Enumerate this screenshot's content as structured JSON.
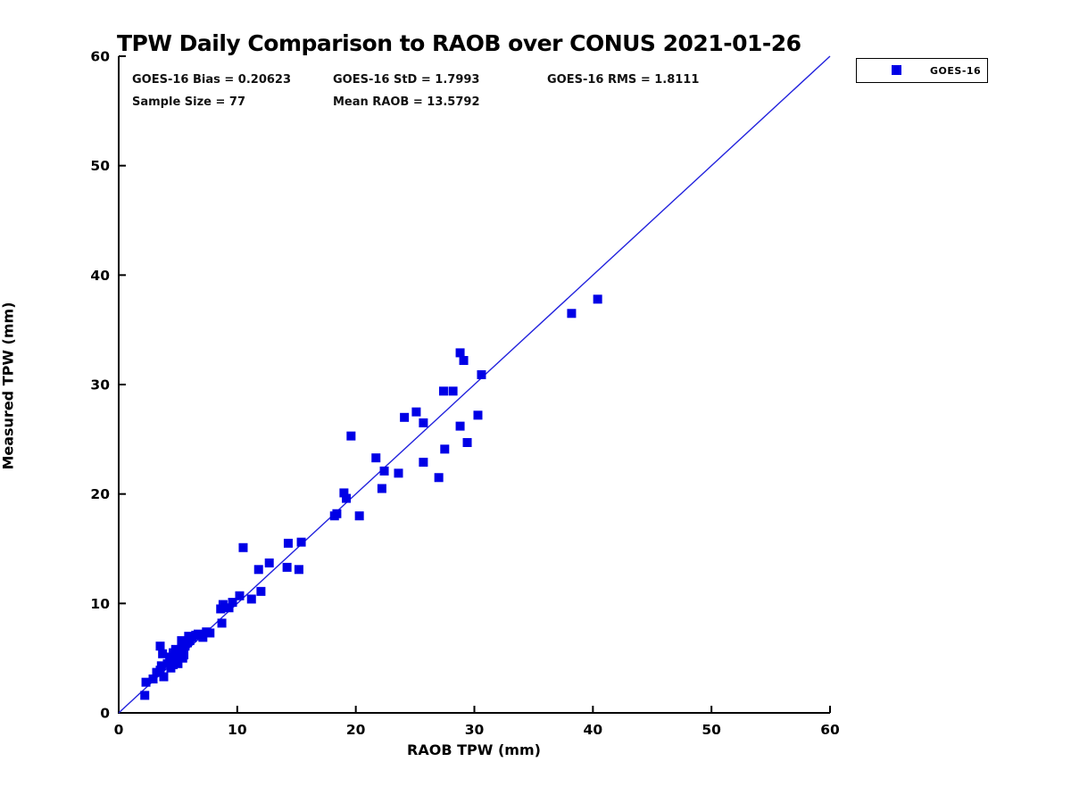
{
  "title": "TPW Daily Comparison to RAOB over CONUS 2021-01-26",
  "stats": {
    "bias": "GOES-16 Bias = 0.20623",
    "std": "GOES-16 StD = 1.7993",
    "rms": "GOES-16 RMS = 1.8111",
    "sample_size": "Sample Size = 77",
    "mean_raob": "Mean RAOB = 13.5792"
  },
  "legend": {
    "label": "GOES-16",
    "marker_color": "#0000e6"
  },
  "chart_data": {
    "type": "scatter",
    "title": "TPW Daily Comparison to RAOB over CONUS 2021-01-26",
    "xlabel": "RAOB TPW (mm)",
    "ylabel": "Measured TPW (mm)",
    "xlim": [
      0,
      60
    ],
    "ylim": [
      0,
      60
    ],
    "xticks": [
      0,
      10,
      20,
      30,
      40,
      50,
      60
    ],
    "yticks": [
      0,
      10,
      20,
      30,
      40,
      50,
      60
    ],
    "grid": false,
    "legend_position": "outside-top-right",
    "axis_color": "#000000",
    "annotations": {
      "bias": 0.20623,
      "std": 1.7993,
      "rms": 1.8111,
      "sample_size": 77,
      "mean_raob": 13.5792
    },
    "reference_line": {
      "name": "1:1 line",
      "from": [
        0,
        0
      ],
      "to": [
        60,
        60
      ],
      "color": "#2222dd"
    },
    "series": [
      {
        "name": "GOES-16",
        "marker": "square",
        "color": "#0000e6",
        "points": [
          [
            2.2,
            1.6
          ],
          [
            2.3,
            2.8
          ],
          [
            2.9,
            3.1
          ],
          [
            3.2,
            3.7
          ],
          [
            3.5,
            3.9
          ],
          [
            3.8,
            3.3
          ],
          [
            3.6,
            4.3
          ],
          [
            4.1,
            4.5
          ],
          [
            4.4,
            4.1
          ],
          [
            4.6,
            4.4
          ],
          [
            4.8,
            4.7
          ],
          [
            5.0,
            4.5
          ],
          [
            3.5,
            6.1
          ],
          [
            3.7,
            5.4
          ],
          [
            4.3,
            5.1
          ],
          [
            4.6,
            5.5
          ],
          [
            4.8,
            5.8
          ],
          [
            5.0,
            5.4
          ],
          [
            5.2,
            5.1
          ],
          [
            5.4,
            5.0
          ],
          [
            5.3,
            5.8
          ],
          [
            5.6,
            6.1
          ],
          [
            5.8,
            6.4
          ],
          [
            5.3,
            6.6
          ],
          [
            4.5,
            4.8
          ],
          [
            4.9,
            5.2
          ],
          [
            5.1,
            5.6
          ],
          [
            5.5,
            5.3
          ],
          [
            6.0,
            6.6
          ],
          [
            5.9,
            7.0
          ],
          [
            6.2,
            6.9
          ],
          [
            6.5,
            7.1
          ],
          [
            6.7,
            7.2
          ],
          [
            7.1,
            6.9
          ],
          [
            7.4,
            7.4
          ],
          [
            7.7,
            7.3
          ],
          [
            8.7,
            8.2
          ],
          [
            8.6,
            9.5
          ],
          [
            8.8,
            9.9
          ],
          [
            9.3,
            9.6
          ],
          [
            9.6,
            10.1
          ],
          [
            10.2,
            10.7
          ],
          [
            11.2,
            10.4
          ],
          [
            10.5,
            15.1
          ],
          [
            12.0,
            11.1
          ],
          [
            11.8,
            13.1
          ],
          [
            12.7,
            13.7
          ],
          [
            14.2,
            13.3
          ],
          [
            15.2,
            13.1
          ],
          [
            14.3,
            15.5
          ],
          [
            15.4,
            15.6
          ],
          [
            18.2,
            18.0
          ],
          [
            18.4,
            18.2
          ],
          [
            19.0,
            20.1
          ],
          [
            19.2,
            19.6
          ],
          [
            19.6,
            25.3
          ],
          [
            20.3,
            18.0
          ],
          [
            21.7,
            23.3
          ],
          [
            22.2,
            20.5
          ],
          [
            22.4,
            22.1
          ],
          [
            23.6,
            21.9
          ],
          [
            24.1,
            27.0
          ],
          [
            25.1,
            27.5
          ],
          [
            25.7,
            26.5
          ],
          [
            25.7,
            22.9
          ],
          [
            27.0,
            21.5
          ],
          [
            27.4,
            29.4
          ],
          [
            28.2,
            29.4
          ],
          [
            27.5,
            24.1
          ],
          [
            28.8,
            26.2
          ],
          [
            29.4,
            24.7
          ],
          [
            28.8,
            32.9
          ],
          [
            29.1,
            32.2
          ],
          [
            30.3,
            27.2
          ],
          [
            30.6,
            30.9
          ],
          [
            38.2,
            36.5
          ],
          [
            40.4,
            37.8
          ]
        ]
      }
    ]
  }
}
